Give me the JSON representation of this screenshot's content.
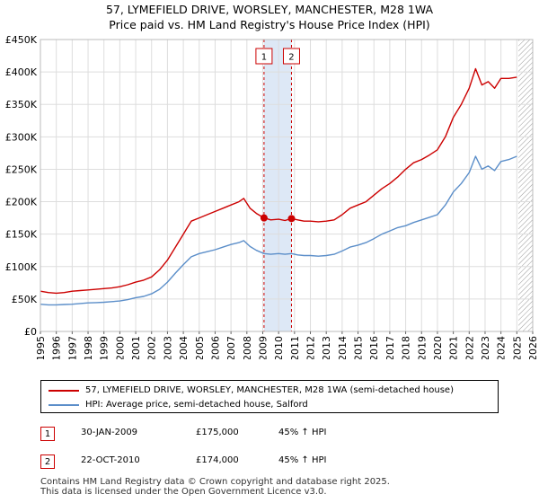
{
  "title_line1": "57, LYMEFIELD DRIVE, WORSLEY, MANCHESTER, M28 1WA",
  "title_line2": "Price paid vs. HM Land Registry's House Price Index (HPI)",
  "colors": {
    "property": "#cc0000",
    "hpi": "#5b8ec9",
    "shade": "#dde8f6",
    "grid": "#dddddd",
    "marker_border": "#cc0000"
  },
  "chart_data": {
    "type": "line",
    "ylim": [
      0,
      450000
    ],
    "xlim": [
      1995,
      2026
    ],
    "y_ticks": [
      {
        "value": 0,
        "label": "£0"
      },
      {
        "value": 50000,
        "label": "£50K"
      },
      {
        "value": 100000,
        "label": "£100K"
      },
      {
        "value": 150000,
        "label": "£150K"
      },
      {
        "value": 200000,
        "label": "£200K"
      },
      {
        "value": 250000,
        "label": "£250K"
      },
      {
        "value": 300000,
        "label": "£300K"
      },
      {
        "value": 350000,
        "label": "£350K"
      },
      {
        "value": 400000,
        "label": "£400K"
      },
      {
        "value": 450000,
        "label": "£450K"
      }
    ],
    "x_ticks": [
      "1995",
      "1996",
      "1997",
      "1998",
      "1999",
      "2000",
      "2001",
      "2002",
      "2003",
      "2004",
      "2005",
      "2006",
      "2007",
      "2008",
      "2009",
      "2010",
      "2011",
      "2012",
      "2013",
      "2014",
      "2015",
      "2016",
      "2017",
      "2018",
      "2019",
      "2020",
      "2021",
      "2022",
      "2023",
      "2024",
      "2025",
      "2026"
    ],
    "shaded_period": [
      2009.08,
      2010.81
    ],
    "future_hatch_start": 2025.1,
    "series": [
      {
        "name": "57, LYMEFIELD DRIVE, WORSLEY, MANCHESTER, M28 1WA (semi-detached house)",
        "key": "property",
        "x": [
          1995.0,
          1995.5,
          1996.0,
          1996.5,
          1997.0,
          1997.5,
          1998.0,
          1998.5,
          1999.0,
          1999.5,
          2000.0,
          2000.5,
          2001.0,
          2001.5,
          2002.0,
          2002.5,
          2003.0,
          2003.5,
          2004.0,
          2004.5,
          2005.0,
          2005.5,
          2006.0,
          2006.5,
          2007.0,
          2007.5,
          2007.8,
          2008.2,
          2008.6,
          2009.08,
          2009.5,
          2010.0,
          2010.4,
          2010.81,
          2011.2,
          2011.6,
          2012.0,
          2012.5,
          2013.0,
          2013.5,
          2014.0,
          2014.5,
          2015.0,
          2015.5,
          2016.0,
          2016.5,
          2017.0,
          2017.5,
          2018.0,
          2018.5,
          2019.0,
          2019.5,
          2020.0,
          2020.5,
          2021.0,
          2021.5,
          2022.0,
          2022.4,
          2022.8,
          2023.2,
          2023.6,
          2024.0,
          2024.5,
          2025.0
        ],
        "values": [
          62000,
          60000,
          59000,
          60000,
          62000,
          63000,
          64000,
          65000,
          66000,
          67000,
          69000,
          72000,
          76000,
          79000,
          84000,
          95000,
          110000,
          130000,
          150000,
          170000,
          175000,
          180000,
          185000,
          190000,
          195000,
          200000,
          205000,
          190000,
          182000,
          175000,
          172000,
          173000,
          171000,
          174000,
          172000,
          170000,
          170000,
          169000,
          170000,
          172000,
          180000,
          190000,
          195000,
          200000,
          210000,
          220000,
          228000,
          238000,
          250000,
          260000,
          265000,
          272000,
          280000,
          300000,
          330000,
          350000,
          375000,
          405000,
          380000,
          385000,
          375000,
          390000,
          390000,
          392000
        ]
      },
      {
        "name": "HPI: Average price, semi-detached house, Salford",
        "key": "hpi",
        "x": [
          1995.0,
          1995.5,
          1996.0,
          1996.5,
          1997.0,
          1997.5,
          1998.0,
          1998.5,
          1999.0,
          1999.5,
          2000.0,
          2000.5,
          2001.0,
          2001.5,
          2002.0,
          2002.5,
          2003.0,
          2003.5,
          2004.0,
          2004.5,
          2005.0,
          2005.5,
          2006.0,
          2006.5,
          2007.0,
          2007.5,
          2007.8,
          2008.2,
          2008.6,
          2009.08,
          2009.5,
          2010.0,
          2010.4,
          2010.81,
          2011.2,
          2011.6,
          2012.0,
          2012.5,
          2013.0,
          2013.5,
          2014.0,
          2014.5,
          2015.0,
          2015.5,
          2016.0,
          2016.5,
          2017.0,
          2017.5,
          2018.0,
          2018.5,
          2019.0,
          2019.5,
          2020.0,
          2020.5,
          2021.0,
          2021.5,
          2022.0,
          2022.4,
          2022.8,
          2023.2,
          2023.6,
          2024.0,
          2024.5,
          2025.0
        ],
        "values": [
          42000,
          41000,
          41000,
          41500,
          42000,
          43000,
          44000,
          44500,
          45000,
          46000,
          47000,
          49000,
          52000,
          54000,
          58000,
          65000,
          76000,
          90000,
          103000,
          115000,
          120000,
          123000,
          126000,
          130000,
          134000,
          137000,
          140000,
          131000,
          125000,
          120000,
          119000,
          120000,
          119000,
          120000,
          118000,
          117000,
          117000,
          116000,
          117000,
          119000,
          124000,
          130000,
          133000,
          137000,
          143000,
          150000,
          155000,
          160000,
          163000,
          168000,
          172000,
          176000,
          180000,
          195000,
          215000,
          228000,
          245000,
          270000,
          250000,
          255000,
          248000,
          262000,
          265000,
          270000
        ]
      }
    ],
    "sales": [
      {
        "label": "1",
        "x": 2009.08,
        "value": 175000
      },
      {
        "label": "2",
        "x": 2010.81,
        "value": 174000
      }
    ]
  },
  "legend": {
    "property_label": "57, LYMEFIELD DRIVE, WORSLEY, MANCHESTER, M28 1WA (semi-detached house)",
    "hpi_label": "HPI: Average price, semi-detached house, Salford"
  },
  "sales_table": [
    {
      "label": "1",
      "date": "30-JAN-2009",
      "price": "£175,000",
      "hpi": "45% ↑ HPI"
    },
    {
      "label": "2",
      "date": "22-OCT-2010",
      "price": "£174,000",
      "hpi": "45% ↑ HPI"
    }
  ],
  "footer_line1": "Contains HM Land Registry data © Crown copyright and database right 2025.",
  "footer_line2": "This data is licensed under the Open Government Licence v3.0."
}
